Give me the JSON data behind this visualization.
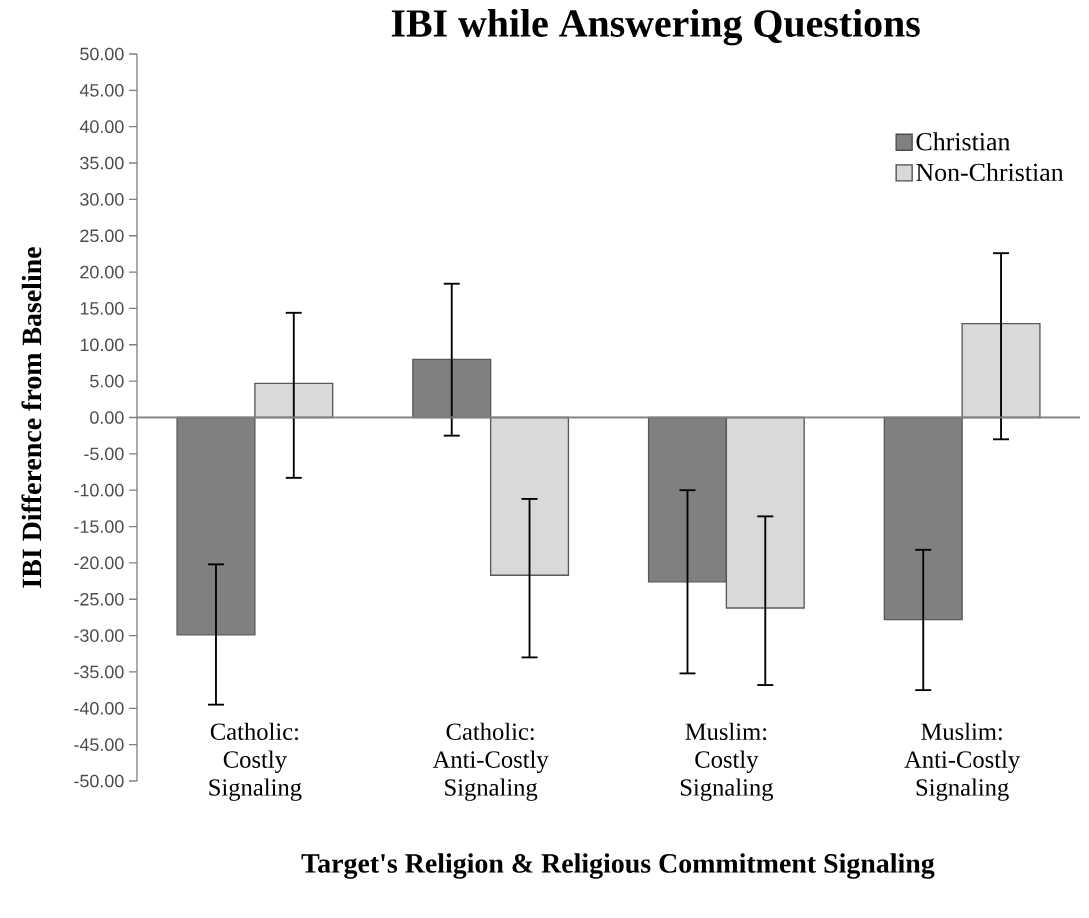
{
  "chart_data": {
    "type": "bar",
    "title": "IBI while Answering Questions",
    "xlabel": "Target's Religion & Religious Commitment Signaling",
    "ylabel": "IBI Difference from Baseline",
    "categories": [
      "Catholic: Costly Signaling",
      "Catholic: Anti-Costly Signaling",
      "Muslim: Costly Signaling",
      "Muslim: Anti-Costly Signaling"
    ],
    "series": [
      {
        "name": "Christian",
        "color": "#808080",
        "values": [
          -29.9,
          8.0,
          -22.6,
          -27.8
        ],
        "errors": [
          [
            -39.5,
            -20.2
          ],
          [
            -2.5,
            18.4
          ],
          [
            -35.2,
            -10.0
          ],
          [
            -37.5,
            -18.2
          ]
        ]
      },
      {
        "name": "Non-Christian",
        "color": "#d9d9d9",
        "values": [
          4.7,
          -21.7,
          -26.2,
          12.9
        ],
        "errors": [
          [
            -8.3,
            14.4
          ],
          [
            -33.0,
            -11.2
          ],
          [
            -36.8,
            -13.6
          ],
          [
            -3.0,
            22.6
          ]
        ]
      }
    ],
    "ylim": [
      -50,
      50
    ],
    "yticks": [
      {
        "value": -50,
        "label": "-50.00"
      },
      {
        "value": -45,
        "label": "-45.00"
      },
      {
        "value": -40,
        "label": "-40.00"
      },
      {
        "value": -35,
        "label": "-35.00"
      },
      {
        "value": -30,
        "label": "-30.00"
      },
      {
        "value": -25,
        "label": "-25.00"
      },
      {
        "value": -20,
        "label": "-20.00"
      },
      {
        "value": -15,
        "label": "-15.00"
      },
      {
        "value": -10,
        "label": "-10.00"
      },
      {
        "value": -5,
        "label": "-5.00"
      },
      {
        "value": 0,
        "label": "0.00"
      },
      {
        "value": 5,
        "label": "5.00"
      },
      {
        "value": 10,
        "label": "10.00"
      },
      {
        "value": 15,
        "label": "15.00"
      },
      {
        "value": 20,
        "label": "20.00"
      },
      {
        "value": 25,
        "label": "25.00"
      },
      {
        "value": 30,
        "label": "30.00"
      },
      {
        "value": 35,
        "label": "35.00"
      },
      {
        "value": 40,
        "label": "40.00"
      },
      {
        "value": 45,
        "label": "45.00"
      },
      {
        "value": 50,
        "label": "50.00"
      }
    ],
    "legend": "top right"
  }
}
